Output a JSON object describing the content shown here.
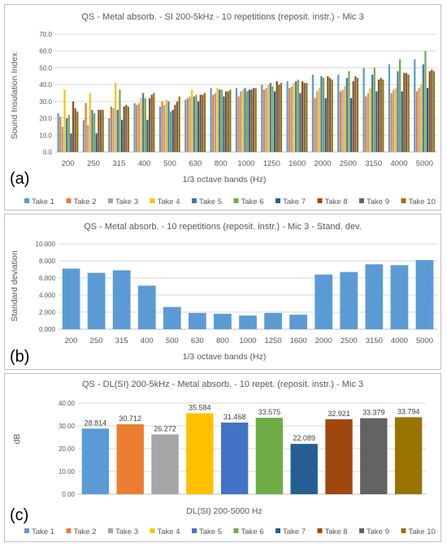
{
  "colors": [
    "#5B9BD5",
    "#ED7D31",
    "#A5A5A5",
    "#FFC000",
    "#4472C4",
    "#70AD47",
    "#255E91",
    "#9E480E",
    "#636363",
    "#997300"
  ],
  "legend": [
    "Take 1",
    "Take 2",
    "Take 3",
    "Take 4",
    "Take 5",
    "Take 6",
    "Take 7",
    "Take 8",
    "Take 9",
    "Take 10"
  ],
  "chart_data": [
    {
      "type": "bar",
      "panel_label": "(a)",
      "title": "QS - Metal absorb. - SI 200-5kHz - 10 repetitions (reposit. instr.) - Mic 3",
      "xlabel": "1/3 octave bands (Hz)",
      "ylabel": "Sound Insulation Index",
      "ylim": [
        0,
        70
      ],
      "yticks": [
        "0.0",
        "10.0",
        "20.0",
        "30.0",
        "40.0",
        "50.0",
        "60.0",
        "70.0"
      ],
      "grid": true,
      "legend_position": "bottom",
      "categories": [
        "200",
        "250",
        "315",
        "400",
        "500",
        "630",
        "800",
        "1000",
        "1250",
        "1600",
        "2000",
        "2500",
        "3150",
        "4000",
        "5000"
      ],
      "series": [
        {
          "name": "Take 1",
          "values": [
            23,
            19,
            20,
            29,
            27,
            31,
            38,
            38,
            40,
            42,
            46,
            46,
            50,
            52,
            55
          ]
        },
        {
          "name": "Take 2",
          "values": [
            21,
            29,
            27,
            28,
            30,
            32,
            34,
            33,
            37,
            38,
            32,
            36,
            33,
            35,
            36
          ]
        },
        {
          "name": "Take 3",
          "values": [
            15,
            16,
            26,
            29,
            28,
            33,
            35,
            36,
            38,
            39,
            36,
            37,
            35,
            37,
            38
          ]
        },
        {
          "name": "Take 4",
          "values": [
            37,
            35,
            41,
            32,
            31,
            37,
            38,
            37,
            40,
            41,
            38,
            39,
            38,
            38,
            40
          ]
        },
        {
          "name": "Take 5",
          "values": [
            20,
            25,
            25,
            35,
            30,
            33,
            37,
            38,
            41,
            42,
            45,
            44,
            46,
            48,
            52
          ]
        },
        {
          "name": "Take 6",
          "values": [
            22,
            23,
            37,
            32,
            24,
            34,
            37,
            36,
            39,
            43,
            44,
            48,
            50,
            55,
            60
          ]
        },
        {
          "name": "Take 7",
          "values": [
            11,
            11,
            19,
            19,
            25,
            30,
            33,
            37,
            36,
            35,
            32,
            32,
            36,
            36,
            38
          ]
        },
        {
          "name": "Take 8",
          "values": [
            30,
            25,
            27,
            32,
            28,
            34,
            36,
            37,
            42,
            42,
            45,
            42,
            43,
            47,
            48
          ]
        },
        {
          "name": "Take 9",
          "values": [
            26,
            25,
            28,
            34,
            30,
            34,
            36,
            38,
            40,
            41,
            44,
            45,
            44,
            47,
            49
          ]
        },
        {
          "name": "Take 10",
          "values": [
            24,
            25,
            27,
            35,
            33,
            35,
            37,
            38,
            41,
            41,
            43,
            44,
            43,
            46,
            48
          ]
        }
      ]
    },
    {
      "type": "bar",
      "panel_label": "(b)",
      "title": "QS - Metal absorb. - 10 repetitions (reposit. instr.) - Mic 3 - Stand. dev.",
      "xlabel": "1/3 octave bands (Hz)",
      "ylabel": "Standard deviation",
      "ylim": [
        0,
        10
      ],
      "yticks": [
        "0.000",
        "2.000",
        "4.000",
        "6.000",
        "8.000",
        "10.000"
      ],
      "grid": true,
      "categories": [
        "200",
        "250",
        "315",
        "400",
        "500",
        "630",
        "800",
        "1000",
        "1250",
        "1600",
        "2000",
        "2500",
        "3150",
        "4000",
        "5000"
      ],
      "values": [
        7.1,
        6.6,
        6.9,
        5.1,
        2.6,
        1.9,
        1.8,
        1.6,
        1.9,
        1.7,
        6.4,
        6.7,
        7.6,
        7.5,
        8.1
      ]
    },
    {
      "type": "bar",
      "panel_label": "(c)",
      "title": "QS - DL(SI) 200-5kHz - Metal absorb. - 10 repet. (reposit. instr.) - Mic 3",
      "xlabel": "DL(SI) 200-5000 Hz",
      "ylabel": "dB",
      "ylim": [
        0,
        40
      ],
      "yticks": [
        "0.00",
        "10.00",
        "20.00",
        "30.00",
        "40.00"
      ],
      "grid": true,
      "legend_position": "bottom",
      "categories": [
        "Take 1",
        "Take 2",
        "Take 3",
        "Take 4",
        "Take 5",
        "Take 6",
        "Take 7",
        "Take 8",
        "Take 9",
        "Take 10"
      ],
      "values": [
        28.814,
        30.712,
        26.272,
        35.584,
        31.468,
        33.575,
        22.089,
        32.921,
        33.379,
        33.794
      ],
      "data_labels": [
        "28.814",
        "30.712",
        "26.272",
        "35.584",
        "31.468",
        "33.575",
        "22.089",
        "32.921",
        "33.379",
        "33.794"
      ]
    }
  ]
}
